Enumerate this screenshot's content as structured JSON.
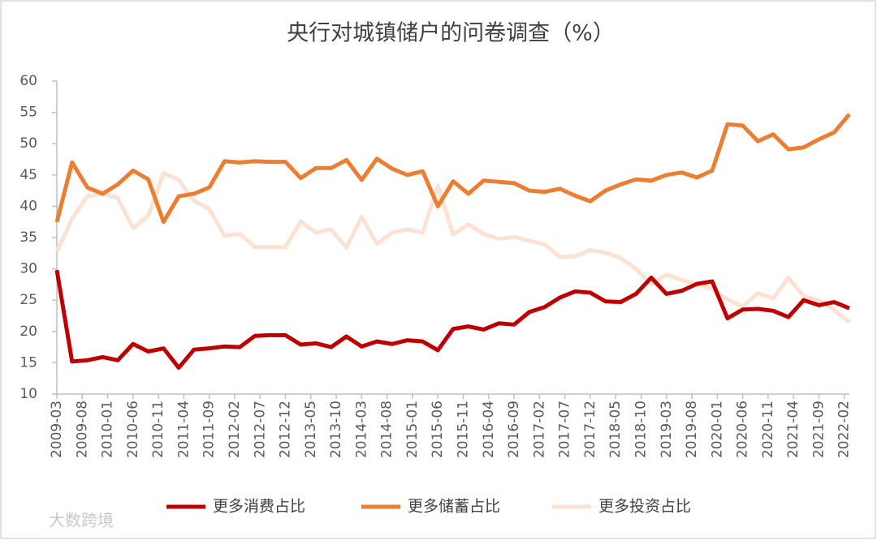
{
  "chart_data": {
    "type": "line",
    "title": "央行对城镇储户的问卷调查（%）",
    "watermark": "大数跨境",
    "x": [
      "2009-03",
      "2009-06",
      "2009-09",
      "2009-12",
      "2010-03",
      "2010-06",
      "2010-09",
      "2010-12",
      "2011-03",
      "2011-06",
      "2011-09",
      "2011-12",
      "2012-03",
      "2012-06",
      "2012-09",
      "2012-12",
      "2013-03",
      "2013-06",
      "2013-09",
      "2013-12",
      "2014-03",
      "2014-06",
      "2014-09",
      "2014-12",
      "2015-03",
      "2015-06",
      "2015-09",
      "2015-12",
      "2016-03",
      "2016-06",
      "2016-09",
      "2016-12",
      "2017-03",
      "2017-06",
      "2017-09",
      "2017-12",
      "2018-03",
      "2018-06",
      "2018-09",
      "2018-12",
      "2019-03",
      "2019-06",
      "2019-09",
      "2019-12",
      "2020-03",
      "2020-06",
      "2020-09",
      "2020-12",
      "2021-03",
      "2021-06",
      "2021-09",
      "2021-12",
      "2022-03"
    ],
    "xlim": [
      "2009-03",
      "2022-03"
    ],
    "xticks": [
      "2009-03",
      "2009-08",
      "2010-01",
      "2010-06",
      "2010-11",
      "2011-04",
      "2011-09",
      "2012-02",
      "2012-07",
      "2012-12",
      "2013-05",
      "2013-10",
      "2014-03",
      "2014-08",
      "2015-01",
      "2015-06",
      "2015-11",
      "2016-04",
      "2016-09",
      "2017-02",
      "2017-07",
      "2017-12",
      "2018-05",
      "2018-10",
      "2019-03",
      "2019-08",
      "2020-01",
      "2020-06",
      "2020-11",
      "2021-04",
      "2021-09",
      "2022-02"
    ],
    "ylim": [
      10,
      60
    ],
    "yticks": [
      10,
      15,
      20,
      25,
      30,
      35,
      40,
      45,
      50,
      55,
      60
    ],
    "grid": false,
    "legend": "bottom",
    "series": [
      {
        "name": "更多消费占比",
        "color": "#c00000",
        "values": [
          29.8,
          15.2,
          15.4,
          15.9,
          15.4,
          18.0,
          16.8,
          17.3,
          14.2,
          17.1,
          17.3,
          17.6,
          17.5,
          19.3,
          19.4,
          19.4,
          17.9,
          18.1,
          17.5,
          19.2,
          17.6,
          18.4,
          18.0,
          18.6,
          18.4,
          17.0,
          20.4,
          20.8,
          20.3,
          21.3,
          21.1,
          23.1,
          23.9,
          25.4,
          26.4,
          26.2,
          24.8,
          24.7,
          26.0,
          28.6,
          26.0,
          26.5,
          27.6,
          28.0,
          22.1,
          23.5,
          23.6,
          23.3,
          22.3,
          25.0,
          24.2,
          24.7,
          23.7
        ]
      },
      {
        "name": "更多储蓄占比",
        "color": "#ed7d31",
        "values": [
          37.5,
          47.0,
          43.0,
          42.0,
          43.5,
          45.7,
          44.3,
          37.5,
          41.6,
          42.0,
          43.0,
          47.2,
          47.0,
          47.2,
          47.1,
          47.1,
          44.5,
          46.1,
          46.1,
          47.4,
          44.2,
          47.6,
          46.0,
          45.0,
          45.6,
          40.0,
          44.0,
          42.0,
          44.1,
          43.9,
          43.7,
          42.5,
          42.3,
          42.8,
          41.7,
          40.8,
          42.5,
          43.5,
          44.3,
          44.1,
          45.0,
          45.4,
          44.6,
          45.7,
          53.1,
          52.9,
          50.4,
          51.5,
          49.1,
          49.4,
          50.7,
          51.8,
          54.7
        ]
      },
      {
        "name": "更多投资占比",
        "color": "#fbe2d3",
        "values": [
          32.8,
          38.0,
          41.6,
          42.0,
          41.3,
          36.5,
          38.5,
          45.3,
          44.2,
          40.9,
          39.6,
          35.3,
          35.6,
          33.5,
          33.5,
          33.5,
          37.6,
          35.8,
          36.3,
          33.4,
          38.3,
          34.0,
          35.8,
          36.3,
          35.8,
          43.3,
          35.5,
          37.1,
          35.6,
          34.8,
          35.1,
          34.5,
          33.9,
          31.9,
          32.0,
          33.0,
          32.6,
          31.7,
          30.0,
          27.5,
          29.1,
          28.2,
          27.6,
          26.8,
          25.1,
          24.0,
          26.1,
          25.3,
          28.6,
          25.6,
          25.0,
          23.4,
          21.5
        ]
      }
    ]
  }
}
